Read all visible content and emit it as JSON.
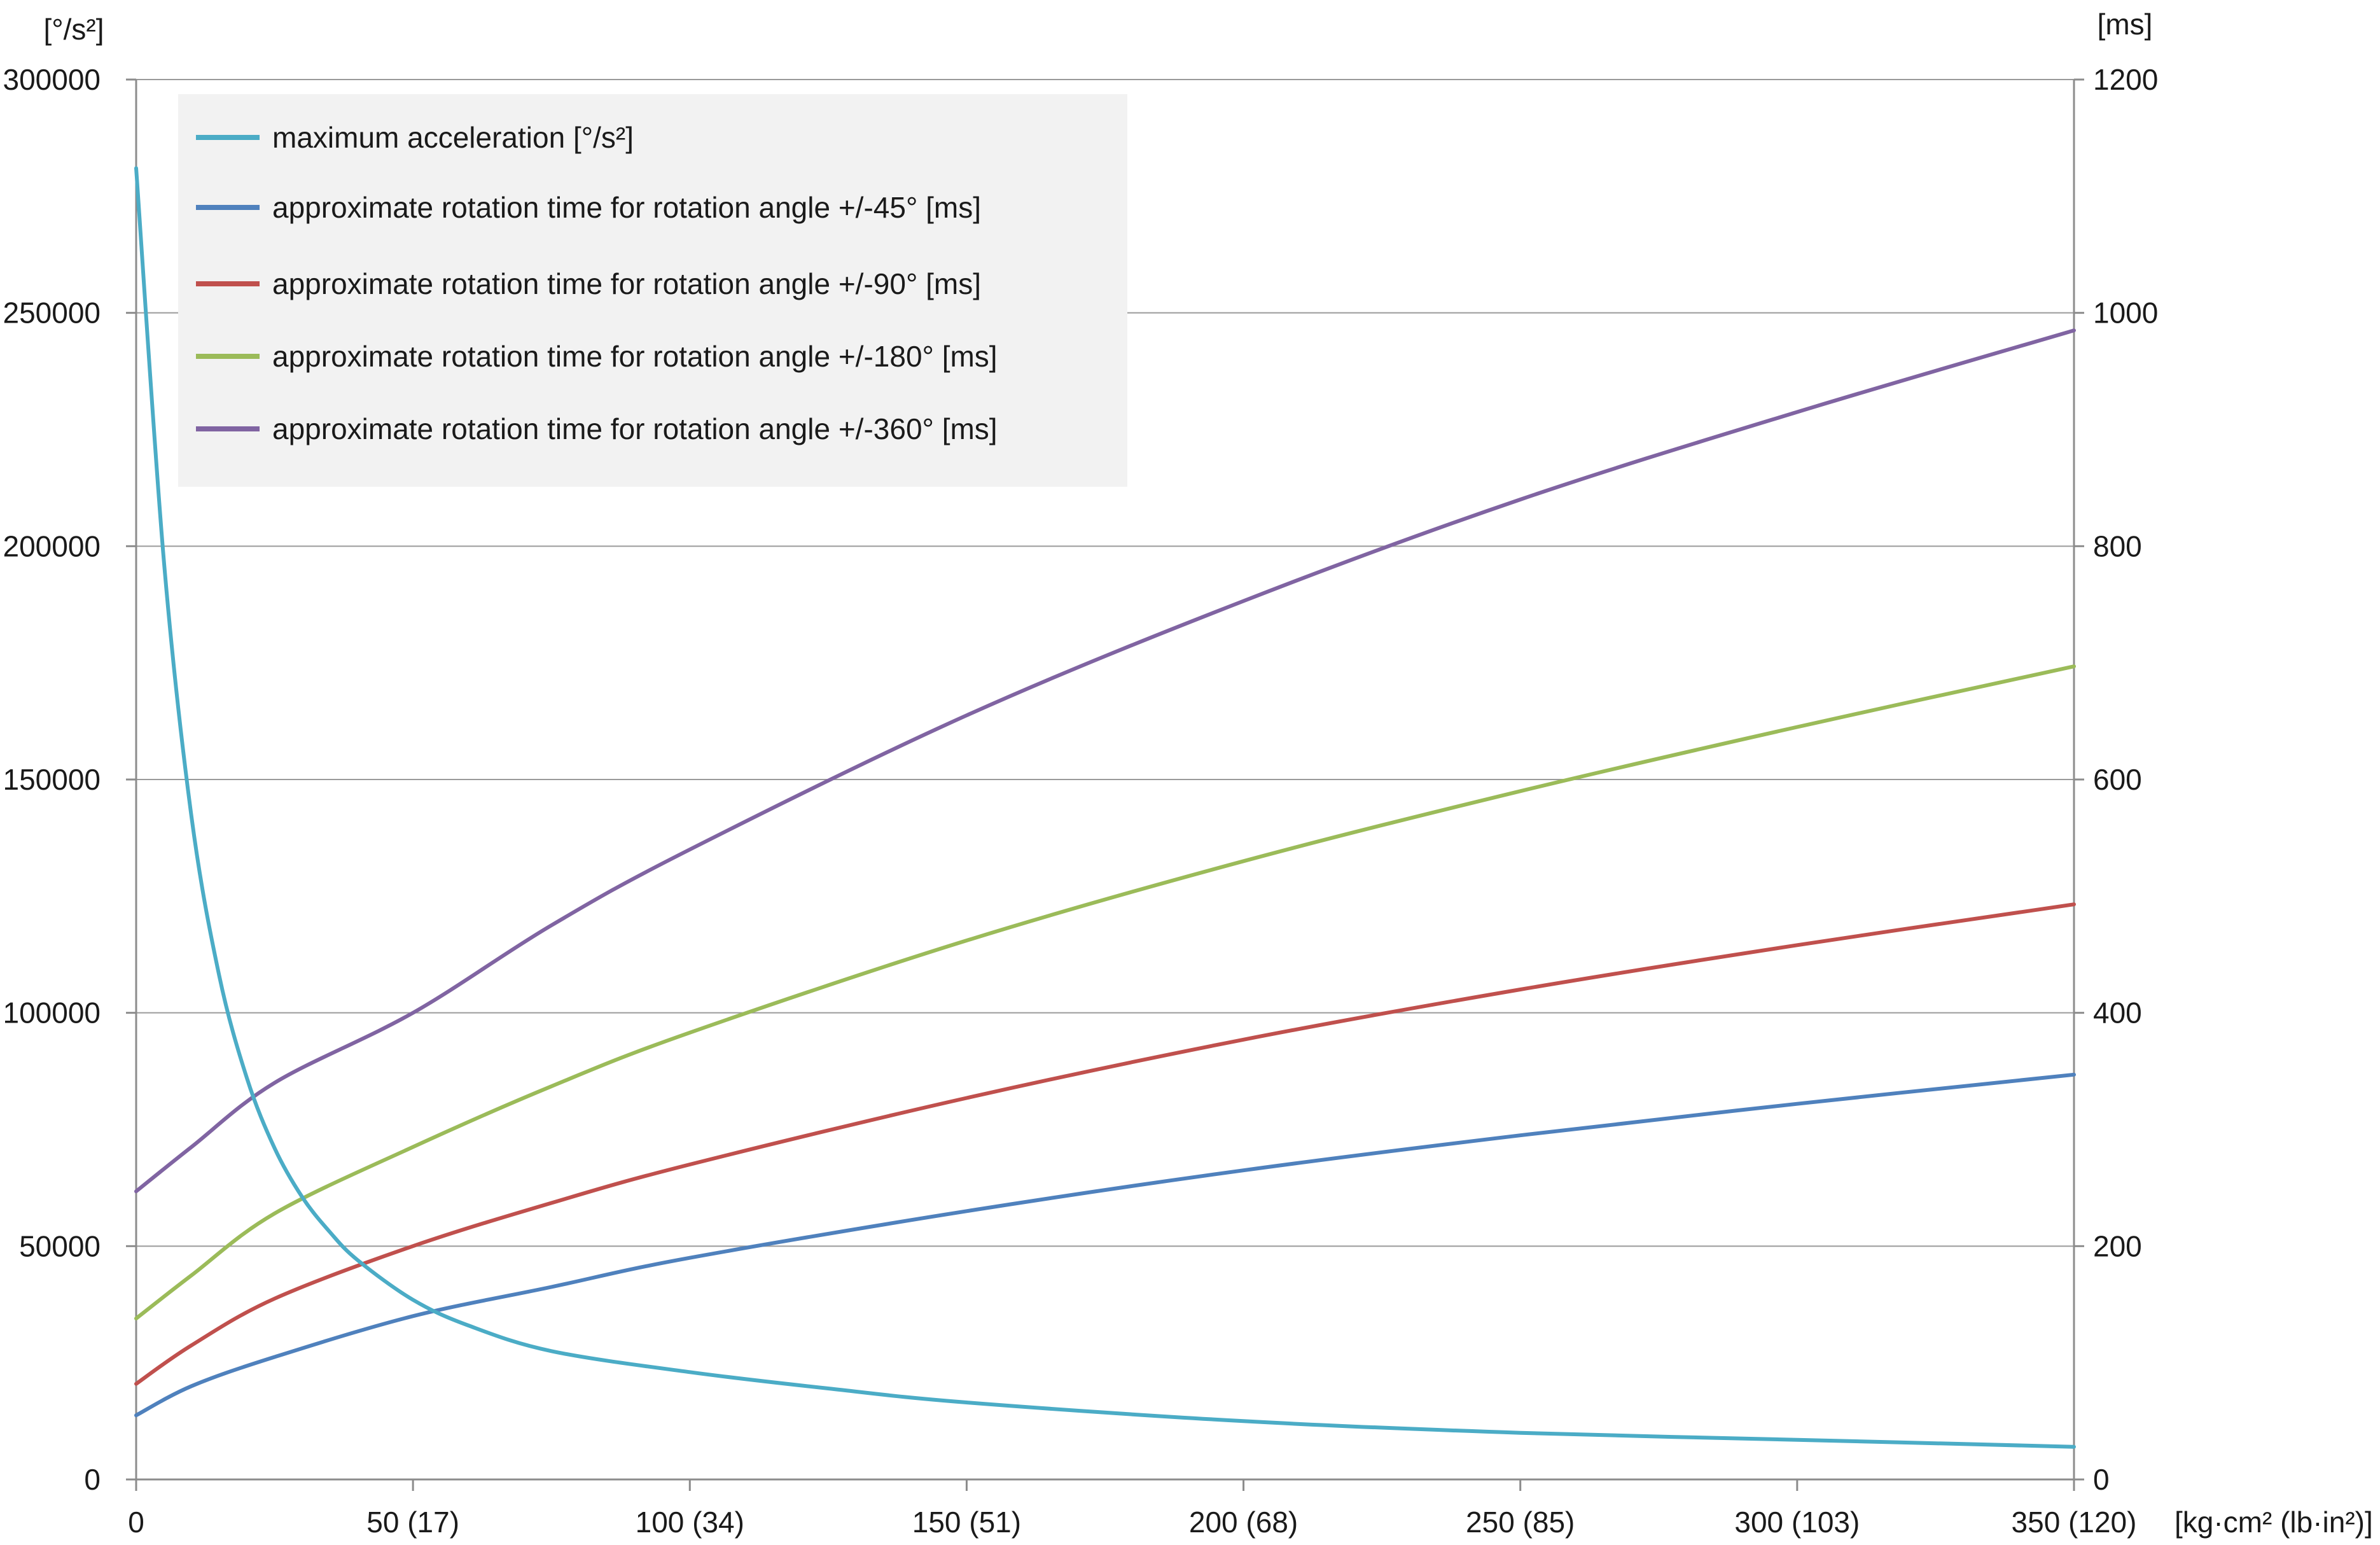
{
  "chart_data": {
    "type": "line",
    "title": "",
    "xlabel": "",
    "x_unit_label": "[kg·cm² (lb·in²)]",
    "y_left_unit": "[°/s²]",
    "y_right_unit": "[ms]",
    "xlim": [
      0,
      350
    ],
    "ylim_left": [
      0,
      300000
    ],
    "ylim_right": [
      0,
      1200
    ],
    "x_ticks": [
      0,
      50,
      100,
      150,
      200,
      250,
      300,
      350
    ],
    "x_tick_labels": [
      "0",
      "50 (17)",
      "100 (34)",
      "150 (51)",
      "200 (68)",
      "250 (85)",
      "300 (103)",
      "350 (120)"
    ],
    "y_left_ticks": [
      0,
      50000,
      100000,
      150000,
      200000,
      250000,
      300000
    ],
    "y_left_tick_labels": [
      "0",
      "50000",
      "100000",
      "150000",
      "200000",
      "250000",
      "300000"
    ],
    "y_right_ticks": [
      0,
      200,
      400,
      600,
      800,
      1000,
      1200
    ],
    "y_right_tick_labels": [
      "0",
      "200",
      "400",
      "600",
      "800",
      "1000",
      "1200"
    ],
    "grid": "horizontal",
    "legend_position": "top-left",
    "series": [
      {
        "name": "maximum acceleration [°/s²]",
        "axis": "left",
        "color": "#4BACC6",
        "x": [
          0,
          5,
          10,
          15,
          20,
          25,
          30,
          35,
          40,
          50,
          60,
          75,
          100,
          125,
          150,
          200,
          250,
          300,
          350
        ],
        "y": [
          281000,
          197000,
          142000,
          108000,
          86000,
          71000,
          60500,
          53000,
          47000,
          38500,
          33000,
          27500,
          23000,
          19500,
          16500,
          12500,
          10000,
          8500,
          7000
        ]
      },
      {
        "name": "approximate rotation time for rotation angle +/-45° [ms]",
        "axis": "right",
        "color": "#4F81BD",
        "x": [
          0,
          10,
          25,
          50,
          75,
          100,
          150,
          200,
          250,
          300,
          350
        ],
        "y": [
          55,
          80,
          105,
          140,
          165,
          190,
          230,
          265,
          295,
          322,
          347
        ]
      },
      {
        "name": "approximate rotation time for rotation angle +/-90° [ms]",
        "axis": "right",
        "color": "#C0504D",
        "x": [
          0,
          10,
          25,
          50,
          75,
          100,
          150,
          200,
          250,
          300,
          350
        ],
        "y": [
          82,
          115,
          155,
          200,
          237,
          270,
          327,
          377,
          420,
          458,
          493
        ]
      },
      {
        "name": "approximate rotation time for rotation angle +/-180° [ms]",
        "axis": "right",
        "color": "#9BBB59",
        "x": [
          0,
          10,
          25,
          50,
          75,
          100,
          150,
          200,
          250,
          300,
          350
        ],
        "y": [
          138,
          175,
          228,
          285,
          337,
          383,
          462,
          530,
          590,
          645,
          697
        ]
      },
      {
        "name": "approximate rotation time for rotation angle +/-360° [ms]",
        "axis": "right",
        "color": "#8064A2",
        "x": [
          0,
          10,
          25,
          50,
          75,
          100,
          150,
          200,
          250,
          300,
          350
        ],
        "y": [
          247,
          285,
          340,
          400,
          475,
          540,
          655,
          753,
          840,
          915,
          985
        ]
      }
    ]
  }
}
